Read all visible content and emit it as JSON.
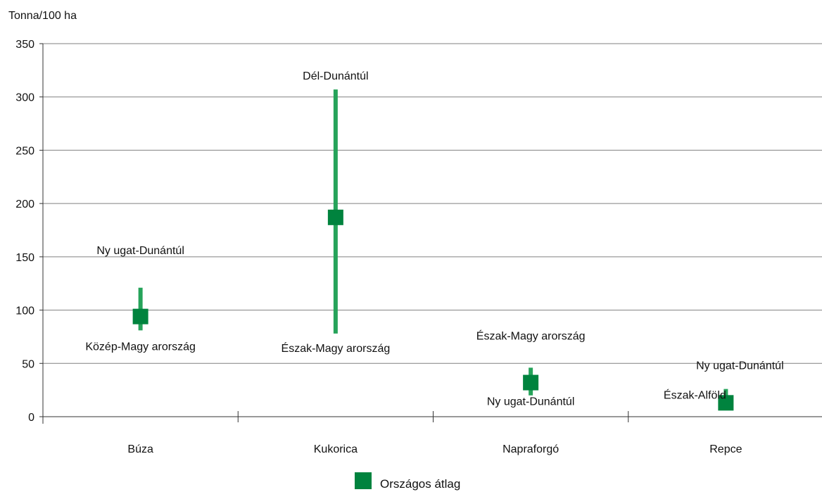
{
  "chart_data": {
    "type": "range",
    "unit_label": "Tonna/100 ha",
    "ylim": [
      0,
      350
    ],
    "yticks": [
      0,
      50,
      100,
      150,
      200,
      250,
      300,
      350
    ],
    "grid": true,
    "categories": [
      "Búza",
      "Kukorica",
      "Napraforgó",
      "Repce"
    ],
    "series": [
      {
        "name": "Országos átlag",
        "values": [
          94,
          187,
          32,
          13
        ]
      }
    ],
    "ranges": [
      {
        "min": 81,
        "max": 121,
        "min_label": "Közép-Magy arország",
        "max_label": "Ny ugat-Dunántúl"
      },
      {
        "min": 78,
        "max": 307,
        "min_label": "Észak-Magy arország",
        "max_label": "Dél-Dunántúl"
      },
      {
        "min": 20,
        "max": 46,
        "min_label": "Ny ugat-Dunántúl",
        "max_label": "Észak-Magy arország"
      },
      {
        "min": 9,
        "max": 26,
        "min_label": "Észak-Alföld",
        "max_label": "Ny ugat-Dunántúl"
      }
    ],
    "colors": {
      "marker": "#00833e",
      "range_line": "#26a35a",
      "grid": "#808080",
      "axis": "#333333"
    },
    "legend_position": "bottom-center"
  }
}
